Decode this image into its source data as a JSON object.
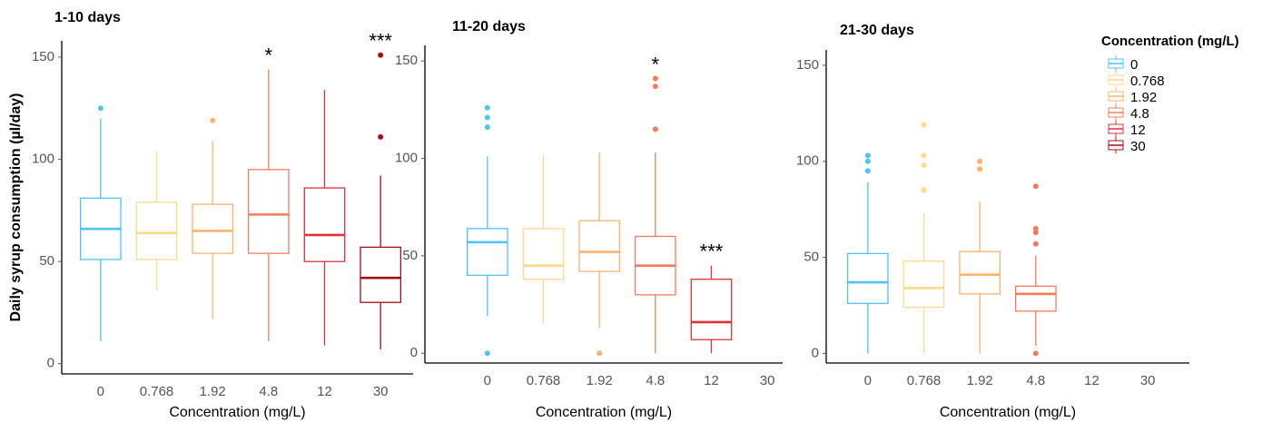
{
  "chart_data": [
    {
      "type": "box",
      "title": "1-10 days",
      "x_label": "Concentration (mg/L)",
      "y_label": "Daily syrup consumption (µl/day)",
      "categories": [
        "0",
        "0.768",
        "1.92",
        "4.8",
        "12",
        "30"
      ],
      "colors": [
        "#4fc3f7",
        "#ffd98a",
        "#fdb36e",
        "#f47c5c",
        "#e0303a",
        "#a50f15"
      ],
      "ylim": [
        -5,
        158
      ],
      "yticks": [
        0,
        50,
        100,
        150
      ],
      "boxes": [
        {
          "min": 11,
          "q1": 51,
          "median": 66,
          "q3": 81,
          "max": 120,
          "outliers": [
            125
          ]
        },
        {
          "min": 36,
          "q1": 51,
          "median": 64,
          "q3": 79,
          "max": 104,
          "outliers": []
        },
        {
          "min": 22,
          "q1": 54,
          "median": 65,
          "q3": 78,
          "max": 109,
          "outliers": [
            119
          ]
        },
        {
          "min": 11,
          "q1": 54,
          "median": 73,
          "q3": 95,
          "max": 144,
          "outliers": []
        },
        {
          "min": 9,
          "q1": 50,
          "median": 63,
          "q3": 86,
          "max": 134,
          "outliers": []
        },
        {
          "min": 7,
          "q1": 30,
          "median": 42,
          "q3": 57,
          "max": 92,
          "outliers": [
            111,
            151
          ]
        }
      ],
      "significance": [
        null,
        null,
        null,
        "*",
        null,
        "***"
      ]
    },
    {
      "type": "box",
      "title": "11-20 days",
      "x_label": "Concentration (mg/L)",
      "categories": [
        "0",
        "0.768",
        "1.92",
        "4.8",
        "12",
        "30"
      ],
      "colors": [
        "#4fc3f7",
        "#ffd98a",
        "#fdb36e",
        "#f47c5c",
        "#e0303a",
        "#a50f15"
      ],
      "ylim": [
        -5,
        158
      ],
      "yticks": [
        0,
        50,
        100,
        150
      ],
      "boxes": [
        {
          "min": 19,
          "q1": 40,
          "median": 57,
          "q3": 64,
          "max": 101,
          "outliers": [
            0,
            116,
            121,
            126
          ]
        },
        {
          "min": 15,
          "q1": 38,
          "median": 45,
          "q3": 64,
          "max": 102,
          "outliers": []
        },
        {
          "min": 13,
          "q1": 42,
          "median": 52,
          "q3": 68,
          "max": 103,
          "outliers": [
            0
          ]
        },
        {
          "min": 0,
          "q1": 30,
          "median": 45,
          "q3": 60,
          "max": 103,
          "outliers": [
            115,
            137,
            141
          ]
        },
        {
          "min": 0,
          "q1": 7,
          "median": 16,
          "q3": 38,
          "max": 45,
          "outliers": []
        },
        null
      ],
      "significance": [
        null,
        null,
        null,
        "*",
        "***",
        null
      ]
    },
    {
      "type": "box",
      "title": "21-30 days",
      "x_label": "Concentration (mg/L)",
      "categories": [
        "0",
        "0.768",
        "1.92",
        "4.8",
        "12",
        "30"
      ],
      "colors": [
        "#4fc3f7",
        "#ffd98a",
        "#fdb36e",
        "#f47c5c",
        "#e0303a",
        "#a50f15"
      ],
      "ylim": [
        -5,
        158
      ],
      "yticks": [
        0,
        50,
        100,
        150
      ],
      "boxes": [
        {
          "min": 0,
          "q1": 26,
          "median": 37,
          "q3": 52,
          "max": 89,
          "outliers": [
            95,
            100,
            103
          ]
        },
        {
          "min": 0,
          "q1": 24,
          "median": 34,
          "q3": 48,
          "max": 73,
          "outliers": [
            85,
            98,
            103,
            119
          ]
        },
        {
          "min": 0,
          "q1": 31,
          "median": 41,
          "q3": 53,
          "max": 79,
          "outliers": [
            96,
            100
          ]
        },
        {
          "min": 4,
          "q1": 22,
          "median": 31,
          "q3": 35,
          "max": 51,
          "outliers": [
            0,
            57,
            63,
            65,
            87
          ]
        },
        null,
        null
      ],
      "significance": [
        null,
        null,
        null,
        null,
        null,
        null
      ],
      "legend": {
        "title": "Concentration (mg/L)"
      }
    }
  ]
}
